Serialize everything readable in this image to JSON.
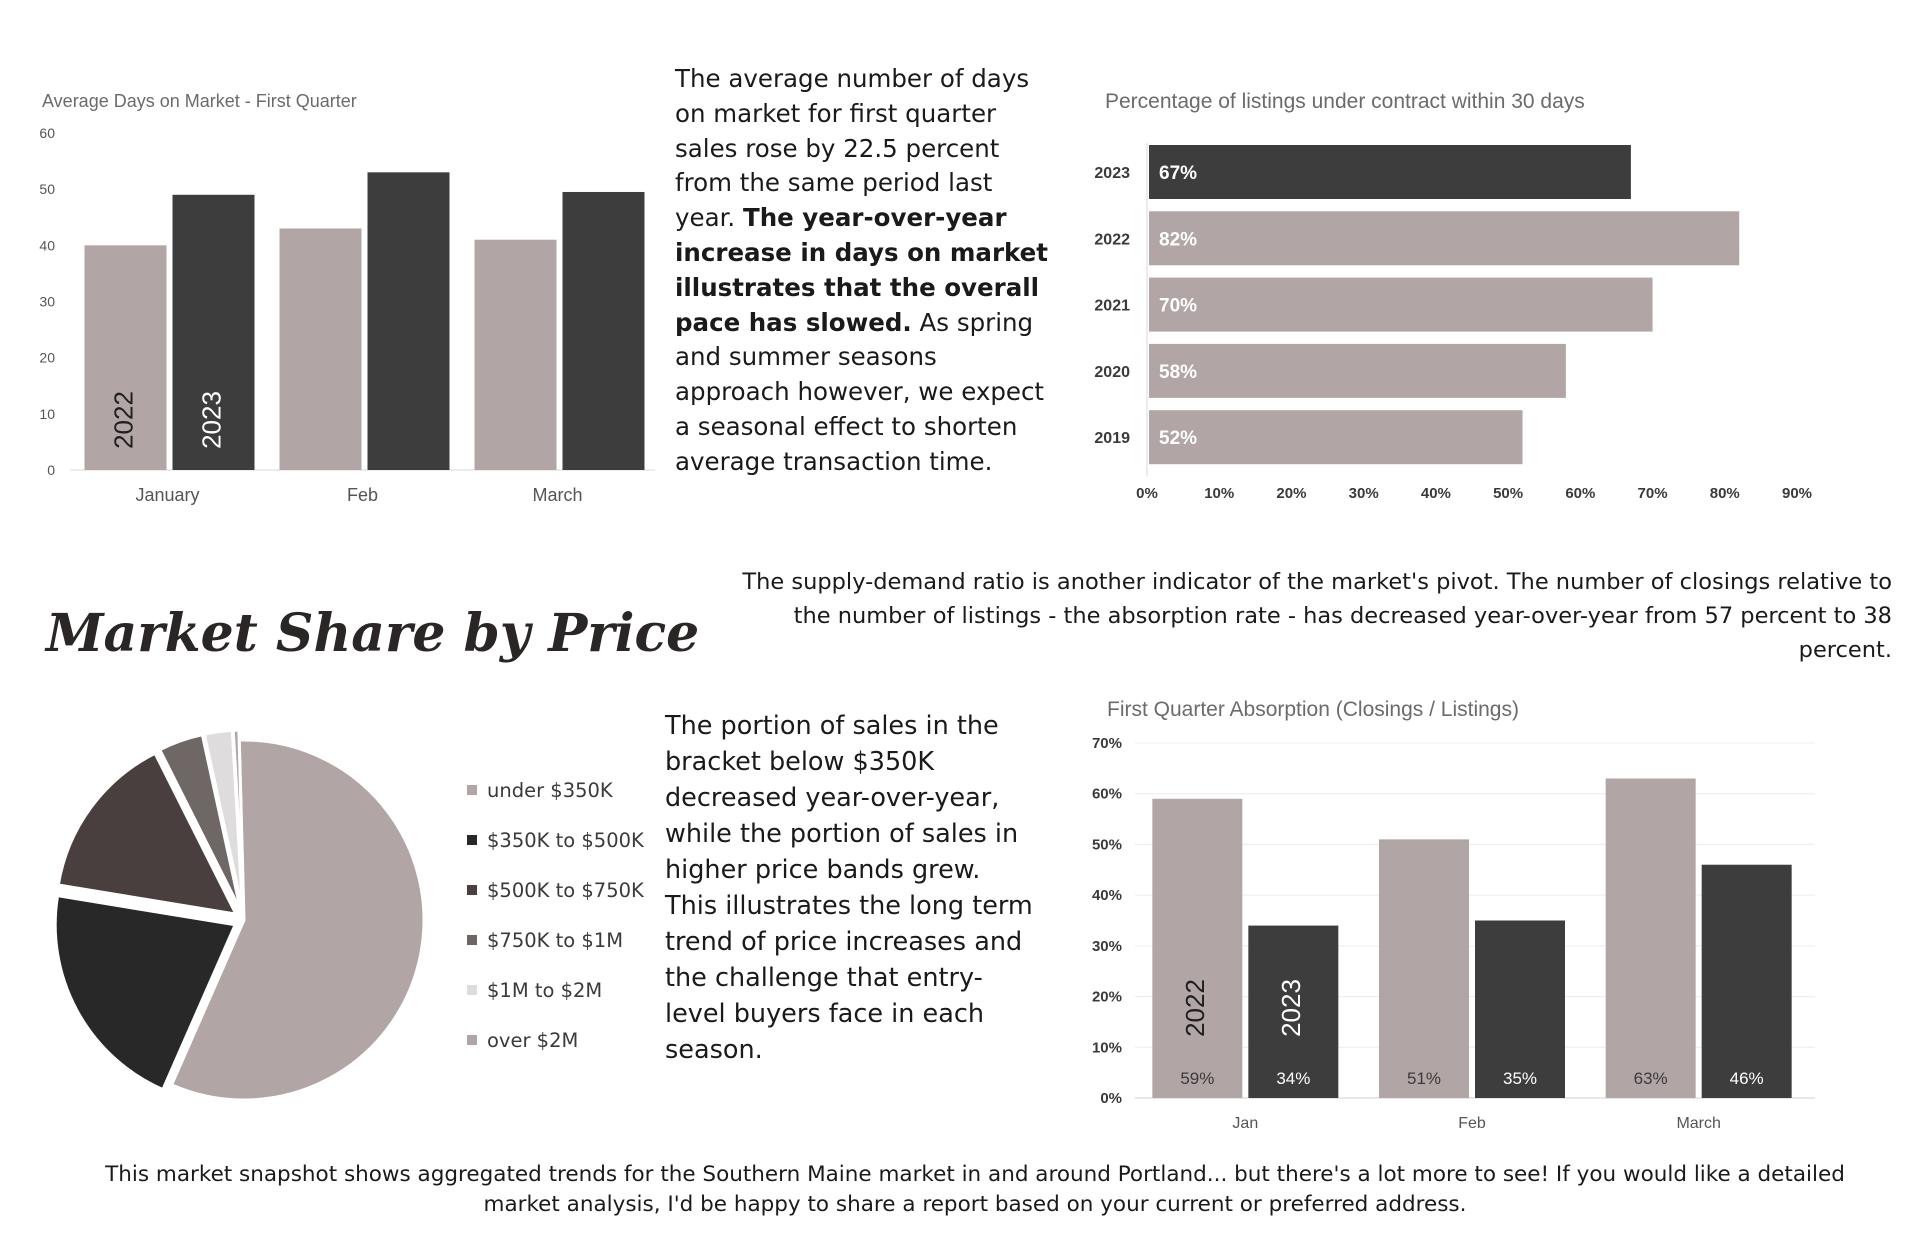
{
  "chart_data": [
    {
      "type": "bar",
      "title": "Average Days on Market - First Quarter",
      "categories": [
        "January",
        "Feb",
        "March"
      ],
      "series": [
        {
          "name": "2022",
          "values": [
            40,
            43,
            41
          ],
          "color": "#b1a6a5"
        },
        {
          "name": "2023",
          "values": [
            49,
            53,
            49.5
          ],
          "color": "#3d3d3d"
        }
      ],
      "ylim": [
        0,
        60
      ],
      "yticks": [
        0,
        10,
        20,
        30,
        40,
        50,
        60
      ],
      "xlabel": "",
      "ylabel": "",
      "series_labels_inside_bars": true
    },
    {
      "type": "bar",
      "orientation": "horizontal",
      "title": "Percentage of listings under contract within 30 days",
      "categories": [
        "2023",
        "2022",
        "2021",
        "2020",
        "2019"
      ],
      "values": [
        67,
        82,
        70,
        58,
        52
      ],
      "value_labels": [
        "67%",
        "82%",
        "70%",
        "58%",
        "52%"
      ],
      "colors": [
        "#3d3d3d",
        "#b1a6a5",
        "#b1a6a5",
        "#b1a6a5",
        "#b1a6a5"
      ],
      "xlim": [
        0,
        90
      ],
      "xticks": [
        "0%",
        "10%",
        "20%",
        "30%",
        "40%",
        "50%",
        "60%",
        "70%",
        "80%",
        "90%"
      ]
    },
    {
      "type": "pie",
      "title": "Market Share by Price",
      "labels": [
        "under $350K",
        "$350K to $500K",
        "$500K to $750K",
        "$750K to $1M",
        "$1M to $2M",
        "over $2M"
      ],
      "values": [
        57,
        21,
        15,
        4,
        2.5,
        0.5
      ],
      "colors": [
        "#b1a6a5",
        "#282828",
        "#4a3f3f",
        "#6f6766",
        "#dedcdc",
        "#b1a6a5"
      ]
    },
    {
      "type": "bar",
      "title": "First Quarter Absorption (Closings / Listings)",
      "categories": [
        "Jan",
        "Feb",
        "March"
      ],
      "series": [
        {
          "name": "2022",
          "values": [
            59,
            51,
            63
          ],
          "labels": [
            "59%",
            "51%",
            "63%"
          ],
          "color": "#b1a6a5"
        },
        {
          "name": "2023",
          "values": [
            34,
            35,
            46
          ],
          "labels": [
            "34%",
            "35%",
            "46%"
          ],
          "color": "#3d3d3d"
        }
      ],
      "ylim": [
        0,
        70
      ],
      "yticks": [
        "0%",
        "10%",
        "20%",
        "30%",
        "40%",
        "50%",
        "60%",
        "70%"
      ],
      "series_labels_inside_bars": true
    }
  ],
  "texts": {
    "dom_paragraph_plain": "The average number of days on market for first quarter sales rose by 22.5 percent from the same period last year. ",
    "dom_paragraph_bold": "The year-over-year increase in days on market illustrates that the overall pace has slowed.",
    "dom_paragraph_end": " As spring and summer seasons approach however, we expect a seasonal effect to shorten average transaction time.",
    "supply_demand": "The supply-demand ratio is another indicator of the market's pivot. The number of closings relative to the number of listings - the absorption rate - has decreased year-over-year from 57 percent to 38 percent.",
    "heading": "Market Share by Price",
    "portion_paragraph": "The portion of sales in the bracket below $350K decreased year-over-year, while the portion of sales in higher price bands grew. This illustrates the long term trend of price increases and the challenge that entry-level buyers face in each season.",
    "footer": "This market snapshot shows aggregated trends for the Southern Maine market in and around Portland... but there's a lot more to see! If you would like a detailed market analysis, I'd be happy to share a report based on your current or preferred address."
  }
}
